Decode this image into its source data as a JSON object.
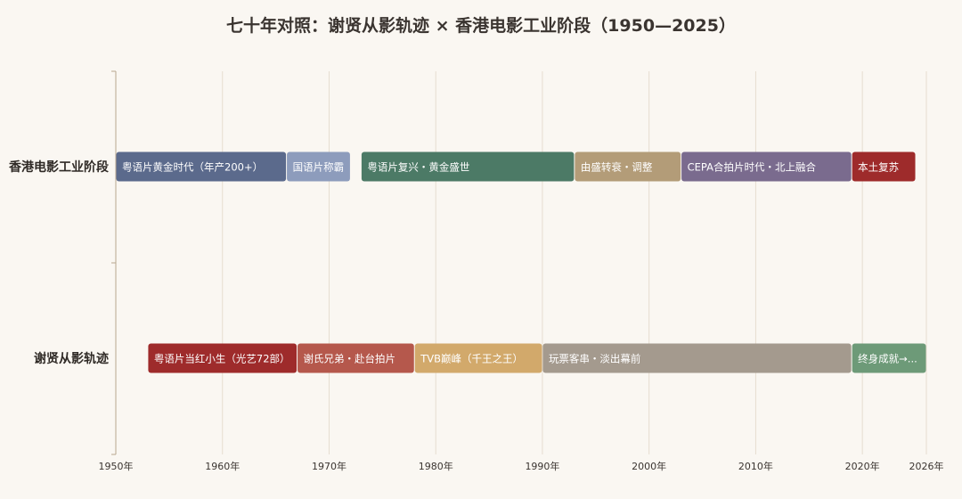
{
  "chart_data": {
    "type": "timeline",
    "title": "七十年对照：谢贤从影轨迹 × 香港电影工业阶段（1950—2025）",
    "xlim": [
      1950,
      2026
    ],
    "ticks": [
      {
        "value": 1950,
        "label": "1950年"
      },
      {
        "value": 1960,
        "label": "1960年"
      },
      {
        "value": 1970,
        "label": "1970年"
      },
      {
        "value": 1980,
        "label": "1980年"
      },
      {
        "value": 1990,
        "label": "1990年"
      },
      {
        "value": 2000,
        "label": "2000年"
      },
      {
        "value": 2010,
        "label": "2010年"
      },
      {
        "value": 2020,
        "label": "2020年"
      },
      {
        "value": 2026,
        "label": "2026年"
      }
    ],
    "rows": [
      {
        "label": "香港电影工业阶段",
        "segments": [
          {
            "start": 1950,
            "end": 1966,
            "label": "粤语片黄金时代（年产200+）",
            "color": "#5b6a8c"
          },
          {
            "start": 1966,
            "end": 1972,
            "label": "国语片称霸",
            "color": "#8d9cbc"
          },
          {
            "start": 1973,
            "end": 1993,
            "label": "粤语片复兴・黄金盛世",
            "color": "#4c7a66"
          },
          {
            "start": 1993,
            "end": 2003,
            "label": "由盛转衰・调整",
            "color": "#b39c78"
          },
          {
            "start": 2003,
            "end": 2019,
            "label": "CEPA合拍片时代・北上融合",
            "color": "#7a6b8e"
          },
          {
            "start": 2019,
            "end": 2025,
            "label": "本土复苏",
            "color": "#9e2b2b"
          }
        ]
      },
      {
        "label": "谢贤从影轨迹",
        "segments": [
          {
            "start": 1953,
            "end": 1967,
            "label": "粤语片当红小生（光艺72部）",
            "color": "#9e2b2b"
          },
          {
            "start": 1967,
            "end": 1978,
            "label": "谢氏兄弟・赴台拍片",
            "color": "#b5584c"
          },
          {
            "start": 1978,
            "end": 1990,
            "label": "TVB巅峰（千王之王）",
            "color": "#d2a96b"
          },
          {
            "start": 1990,
            "end": 2019,
            "label": "玩票客串・淡出幕前",
            "color": "#a49a8e"
          },
          {
            "start": 2019,
            "end": 2026,
            "label": "终身成就→...",
            "color": "#6d9a78"
          }
        ]
      }
    ]
  }
}
